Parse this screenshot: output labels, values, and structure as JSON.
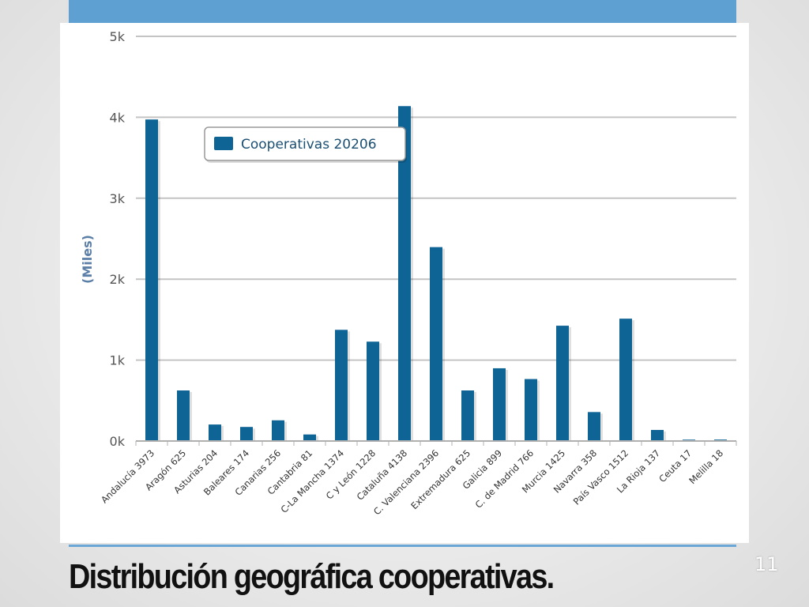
{
  "slide": {
    "title": "Distribución geográfica cooperativas.",
    "page_number": "11"
  },
  "chart_data": {
    "type": "bar",
    "ylabel": "(Miles)",
    "ylim": [
      0,
      5000
    ],
    "y_ticks": [
      0,
      1000,
      2000,
      3000,
      4000,
      5000
    ],
    "y_tick_labels": [
      "0k",
      "1k",
      "2k",
      "3k",
      "4k",
      "5k"
    ],
    "grid": true,
    "legend": {
      "position": "top-left",
      "entries": [
        "Cooperativas 20206"
      ]
    },
    "categories": [
      "Andalucía 3973",
      "Aragón 625",
      "Asturias 204",
      "Baleares 174",
      "Canarias 256",
      "Cantabria 81",
      "C-La Mancha 1374",
      "C y León 1228",
      "Cataluña 4138",
      "C. Valenciana 2396",
      "Extremadura 625",
      "Galicia 899",
      "C. de Madrid 766",
      "Murcia 1425",
      "Navarra 358",
      "País Vasco 1512",
      "La Rioja 137",
      "Ceuta 17",
      "Melilla 18"
    ],
    "series": [
      {
        "name": "Cooperativas 20206",
        "color": "#0f6496",
        "values": [
          3973,
          625,
          204,
          174,
          256,
          81,
          1374,
          1228,
          4138,
          2396,
          625,
          899,
          766,
          1425,
          358,
          1512,
          137,
          17,
          18
        ]
      }
    ]
  }
}
